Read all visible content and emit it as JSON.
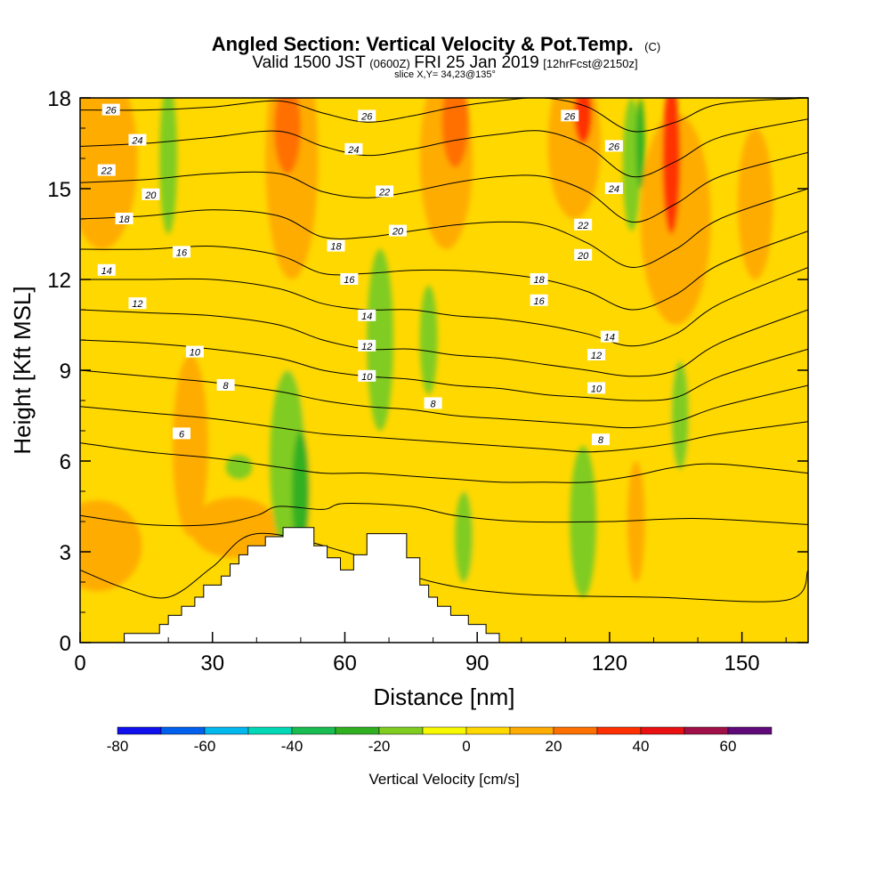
{
  "chart_data": {
    "type": "heatmap",
    "title": {
      "main": "Angled Section: Vertical Velocity & Pot.Temp.",
      "unit": "(C)",
      "valid_prefix": "Valid 1500 JST",
      "valid_zone": "(0600Z)",
      "valid_date": "FRI 25 Jan 2019",
      "forecast": "[12hrFcst@2150z]",
      "slice": "slice X,Y= 34,23@135°"
    },
    "xlabel": "Distance [nm]",
    "ylabel": "Height [Kft MSL]",
    "xlim": [
      0,
      165
    ],
    "ylim": [
      0,
      18
    ],
    "x_ticks": [
      0,
      30,
      60,
      90,
      120,
      150
    ],
    "y_ticks": [
      0,
      3,
      6,
      9,
      12,
      15,
      18
    ],
    "colorbar": {
      "title": "Vertical Velocity [cm/s]",
      "levels": [
        -80,
        -70,
        -60,
        -50,
        -40,
        -30,
        -20,
        -10,
        0,
        10,
        20,
        30,
        40,
        50,
        60,
        70
      ],
      "tick_labels": [
        -80,
        -60,
        -40,
        -20,
        0,
        20,
        40,
        60
      ],
      "colors": [
        "#1010ee",
        "#0060ee",
        "#00b8ee",
        "#00d8b8",
        "#18bc50",
        "#30b020",
        "#80cc20",
        "#f8f800",
        "#ffd800",
        "#ffac00",
        "#ff7000",
        "#ff3000",
        "#e81010",
        "#a01048",
        "#600a7a"
      ]
    },
    "terrain": [
      [
        10,
        0.3
      ],
      [
        18,
        0.6
      ],
      [
        20,
        0.9
      ],
      [
        23,
        1.2
      ],
      [
        26,
        1.5
      ],
      [
        28,
        1.9
      ],
      [
        32,
        2.2
      ],
      [
        34,
        2.6
      ],
      [
        36,
        2.9
      ],
      [
        38,
        3.2
      ],
      [
        42,
        3.5
      ],
      [
        46,
        3.8
      ],
      [
        51,
        3.8
      ],
      [
        53,
        3.2
      ],
      [
        56,
        2.8
      ],
      [
        59,
        2.4
      ],
      [
        62,
        2.9
      ],
      [
        65,
        3.6
      ],
      [
        71,
        3.6
      ],
      [
        74,
        2.8
      ],
      [
        77,
        1.9
      ],
      [
        79,
        1.5
      ],
      [
        81,
        1.2
      ],
      [
        84,
        0.9
      ],
      [
        88,
        0.6
      ],
      [
        92,
        0.3
      ]
    ],
    "theta_contours": [
      {
        "level": 26,
        "x": [
          0,
          15,
          30,
          45,
          55,
          65,
          75,
          85,
          95,
          105,
          115,
          125,
          135,
          145,
          165
        ],
        "y": [
          17.6,
          17.6,
          17.7,
          17.9,
          17.5,
          17.2,
          17.4,
          17.7,
          17.9,
          18.0,
          17.7,
          16.9,
          17.2,
          17.8,
          18.0
        ]
      },
      {
        "level": 24,
        "x": [
          0,
          15,
          30,
          45,
          55,
          65,
          75,
          85,
          95,
          105,
          115,
          125,
          135,
          145,
          165
        ],
        "y": [
          16.4,
          16.5,
          16.7,
          16.9,
          16.4,
          16.1,
          16.3,
          16.6,
          16.8,
          16.9,
          16.4,
          15.4,
          15.9,
          16.7,
          17.3
        ]
      },
      {
        "level": 22,
        "x": [
          0,
          15,
          30,
          45,
          55,
          65,
          75,
          85,
          95,
          105,
          115,
          125,
          135,
          145,
          165
        ],
        "y": [
          15.2,
          15.3,
          15.5,
          15.5,
          14.9,
          14.7,
          14.9,
          15.2,
          15.4,
          15.4,
          14.9,
          13.9,
          14.5,
          15.4,
          16.2
        ]
      },
      {
        "level": 20,
        "x": [
          0,
          15,
          30,
          45,
          55,
          65,
          75,
          85,
          95,
          105,
          115,
          125,
          135,
          145,
          165
        ],
        "y": [
          14.0,
          14.1,
          14.3,
          14.1,
          13.4,
          13.4,
          13.6,
          13.8,
          13.9,
          13.8,
          13.2,
          12.4,
          13.0,
          14.0,
          15.0
        ]
      },
      {
        "level": 18,
        "x": [
          0,
          15,
          30,
          45,
          55,
          65,
          75,
          85,
          95,
          105,
          115,
          125,
          135,
          145,
          165
        ],
        "y": [
          13.0,
          13.0,
          13.1,
          12.8,
          12.2,
          12.2,
          12.3,
          12.3,
          12.2,
          12.0,
          11.6,
          11.0,
          11.5,
          12.5,
          13.6
        ]
      },
      {
        "level": 16,
        "x": [
          0,
          15,
          30,
          45,
          55,
          65,
          75,
          85,
          95,
          105,
          115,
          125,
          135,
          145,
          165
        ],
        "y": [
          12.0,
          12.0,
          12.0,
          11.7,
          11.2,
          11.0,
          11.0,
          10.8,
          10.7,
          10.5,
          10.2,
          9.8,
          10.2,
          11.2,
          12.4
        ]
      },
      {
        "level": 14,
        "x": [
          0,
          15,
          30,
          45,
          55,
          65,
          75,
          85,
          95,
          105,
          115,
          125,
          135,
          145,
          165
        ],
        "y": [
          11.0,
          10.9,
          10.8,
          10.5,
          10.0,
          9.7,
          9.7,
          9.5,
          9.4,
          9.2,
          9.0,
          8.8,
          9.0,
          9.9,
          11.0
        ]
      },
      {
        "level": 12,
        "x": [
          0,
          15,
          30,
          45,
          55,
          65,
          75,
          85,
          95,
          105,
          115,
          125,
          135,
          145,
          165
        ],
        "y": [
          10.0,
          9.9,
          9.7,
          9.4,
          9.0,
          8.8,
          8.7,
          8.5,
          8.4,
          8.2,
          8.1,
          8.0,
          8.1,
          8.8,
          9.7
        ]
      },
      {
        "level": 10,
        "x": [
          0,
          15,
          30,
          45,
          55,
          65,
          75,
          85,
          95,
          105,
          115,
          125,
          135,
          145,
          165
        ],
        "y": [
          9.0,
          8.8,
          8.6,
          8.3,
          8.0,
          7.8,
          7.7,
          7.5,
          7.4,
          7.3,
          7.2,
          7.1,
          7.3,
          7.8,
          8.5
        ]
      },
      {
        "level": 8,
        "x": [
          0,
          15,
          30,
          45,
          55,
          65,
          75,
          85,
          95,
          105,
          115,
          125,
          135,
          145,
          165
        ],
        "y": [
          7.8,
          7.6,
          7.4,
          7.1,
          6.9,
          6.8,
          6.7,
          6.6,
          6.5,
          6.4,
          6.3,
          6.4,
          6.6,
          6.9,
          7.3
        ]
      },
      {
        "level": 6,
        "x": [
          0,
          15,
          30,
          45,
          55,
          65,
          75,
          85,
          95,
          105,
          115,
          125,
          135,
          145,
          165
        ],
        "y": [
          6.6,
          6.3,
          6.1,
          5.8,
          5.6,
          5.6,
          5.5,
          5.4,
          5.3,
          5.3,
          5.3,
          5.5,
          5.8,
          5.9,
          5.6
        ]
      },
      {
        "level": 4,
        "x": [
          0,
          15,
          30,
          40,
          45,
          55,
          60,
          75,
          85,
          100,
          120,
          140,
          165
        ],
        "y": [
          4.2,
          3.9,
          3.9,
          4.2,
          4.5,
          4.4,
          4.6,
          4.5,
          4.2,
          4.0,
          4.0,
          4.1,
          3.9
        ]
      },
      {
        "level": 2,
        "x": [
          0,
          10,
          20,
          30,
          40,
          60,
          80,
          100,
          130,
          160,
          165
        ],
        "y": [
          2.4,
          1.8,
          1.5,
          2.5,
          3.6,
          3.0,
          2.0,
          1.6,
          1.5,
          1.4,
          2.4
        ]
      }
    ],
    "velocity_patches": [
      {
        "x": 54,
        "y": 10.5,
        "rx": 10,
        "ry": 7,
        "value": 5
      },
      {
        "x": 92,
        "y": 9,
        "rx": 7,
        "ry": 9,
        "value": 5
      },
      {
        "x": 100,
        "y": 10,
        "rx": 8,
        "ry": 7,
        "value": 5
      },
      {
        "x": 140,
        "y": 9,
        "rx": 12,
        "ry": 9,
        "value": 5
      },
      {
        "x": 5,
        "y": 16,
        "rx": 8,
        "ry": 3,
        "value": 15
      },
      {
        "x": 25,
        "y": 6.5,
        "rx": 4,
        "ry": 3,
        "value": 15
      },
      {
        "x": 4,
        "y": 3.2,
        "rx": 10,
        "ry": 1.5,
        "value": 15
      },
      {
        "x": 35,
        "y": 3.8,
        "rx": 10,
        "ry": 1,
        "value": 15
      },
      {
        "x": 48,
        "y": 16,
        "rx": 6,
        "ry": 4,
        "value": 15
      },
      {
        "x": 83,
        "y": 16,
        "rx": 6,
        "ry": 3,
        "value": 15
      },
      {
        "x": 112,
        "y": 16.5,
        "rx": 6,
        "ry": 2.5,
        "value": 15
      },
      {
        "x": 135,
        "y": 14,
        "rx": 8,
        "ry": 3.5,
        "value": 15
      },
      {
        "x": 153,
        "y": 14.5,
        "rx": 4,
        "ry": 2.5,
        "value": 15
      },
      {
        "x": 126,
        "y": 4,
        "rx": 2,
        "ry": 2,
        "value": 15
      },
      {
        "x": 47,
        "y": 17,
        "rx": 3,
        "ry": 1.5,
        "value": 25
      },
      {
        "x": 85,
        "y": 17.2,
        "rx": 3,
        "ry": 1.5,
        "value": 25
      },
      {
        "x": 114,
        "y": 17.5,
        "rx": 2,
        "ry": 1,
        "value": 35
      },
      {
        "x": 134,
        "y": 16,
        "rx": 2,
        "ry": 2.5,
        "value": 35
      },
      {
        "x": 20,
        "y": 16,
        "rx": 2,
        "ry": 2.5,
        "value": -15
      },
      {
        "x": 68,
        "y": 10,
        "rx": 3,
        "ry": 3,
        "value": -15
      },
      {
        "x": 79,
        "y": 10,
        "rx": 2,
        "ry": 1.8,
        "value": -15
      },
      {
        "x": 47,
        "y": 6,
        "rx": 4,
        "ry": 3,
        "value": -15
      },
      {
        "x": 36,
        "y": 5.8,
        "rx": 3,
        "ry": 0.4,
        "value": -15
      },
      {
        "x": 87,
        "y": 3.5,
        "rx": 2,
        "ry": 1.5,
        "value": -15
      },
      {
        "x": 114,
        "y": 4,
        "rx": 3,
        "ry": 2.5,
        "value": -15
      },
      {
        "x": 125,
        "y": 15.8,
        "rx": 2,
        "ry": 2.2,
        "value": -15
      },
      {
        "x": 136,
        "y": 7.5,
        "rx": 2,
        "ry": 1.8,
        "value": -15
      },
      {
        "x": 50,
        "y": 5,
        "rx": 2,
        "ry": 2,
        "value": -25
      },
      {
        "x": 127,
        "y": 16.5,
        "rx": 1,
        "ry": 1.5,
        "value": -25
      }
    ],
    "contour_labels": [
      {
        "x": 7,
        "y": 17.6,
        "text": "26"
      },
      {
        "x": 13,
        "y": 16.6,
        "text": "24"
      },
      {
        "x": 6,
        "y": 15.6,
        "text": "22"
      },
      {
        "x": 16,
        "y": 14.8,
        "text": "20"
      },
      {
        "x": 10,
        "y": 14.0,
        "text": "18"
      },
      {
        "x": 23,
        "y": 12.9,
        "text": "16"
      },
      {
        "x": 6,
        "y": 12.3,
        "text": "14"
      },
      {
        "x": 13,
        "y": 11.2,
        "text": "12"
      },
      {
        "x": 26,
        "y": 9.6,
        "text": "10"
      },
      {
        "x": 33,
        "y": 8.5,
        "text": "8"
      },
      {
        "x": 23,
        "y": 6.9,
        "text": "6"
      },
      {
        "x": 65,
        "y": 17.4,
        "text": "26"
      },
      {
        "x": 62,
        "y": 16.3,
        "text": "24"
      },
      {
        "x": 69,
        "y": 14.9,
        "text": "22"
      },
      {
        "x": 72,
        "y": 13.6,
        "text": "20"
      },
      {
        "x": 58,
        "y": 13.1,
        "text": "18"
      },
      {
        "x": 61,
        "y": 12.0,
        "text": "16"
      },
      {
        "x": 65,
        "y": 10.8,
        "text": "14"
      },
      {
        "x": 65,
        "y": 9.8,
        "text": "12"
      },
      {
        "x": 65,
        "y": 8.8,
        "text": "10"
      },
      {
        "x": 80,
        "y": 7.9,
        "text": "8"
      },
      {
        "x": 111,
        "y": 17.4,
        "text": "26"
      },
      {
        "x": 121,
        "y": 16.4,
        "text": "26"
      },
      {
        "x": 121,
        "y": 15.0,
        "text": "24"
      },
      {
        "x": 114,
        "y": 13.8,
        "text": "22"
      },
      {
        "x": 114,
        "y": 12.8,
        "text": "20"
      },
      {
        "x": 104,
        "y": 12.0,
        "text": "18"
      },
      {
        "x": 104,
        "y": 11.3,
        "text": "16"
      },
      {
        "x": 120,
        "y": 10.1,
        "text": "14"
      },
      {
        "x": 117,
        "y": 9.5,
        "text": "12"
      },
      {
        "x": 117,
        "y": 8.4,
        "text": "10"
      },
      {
        "x": 118,
        "y": 6.7,
        "text": "8"
      }
    ]
  }
}
